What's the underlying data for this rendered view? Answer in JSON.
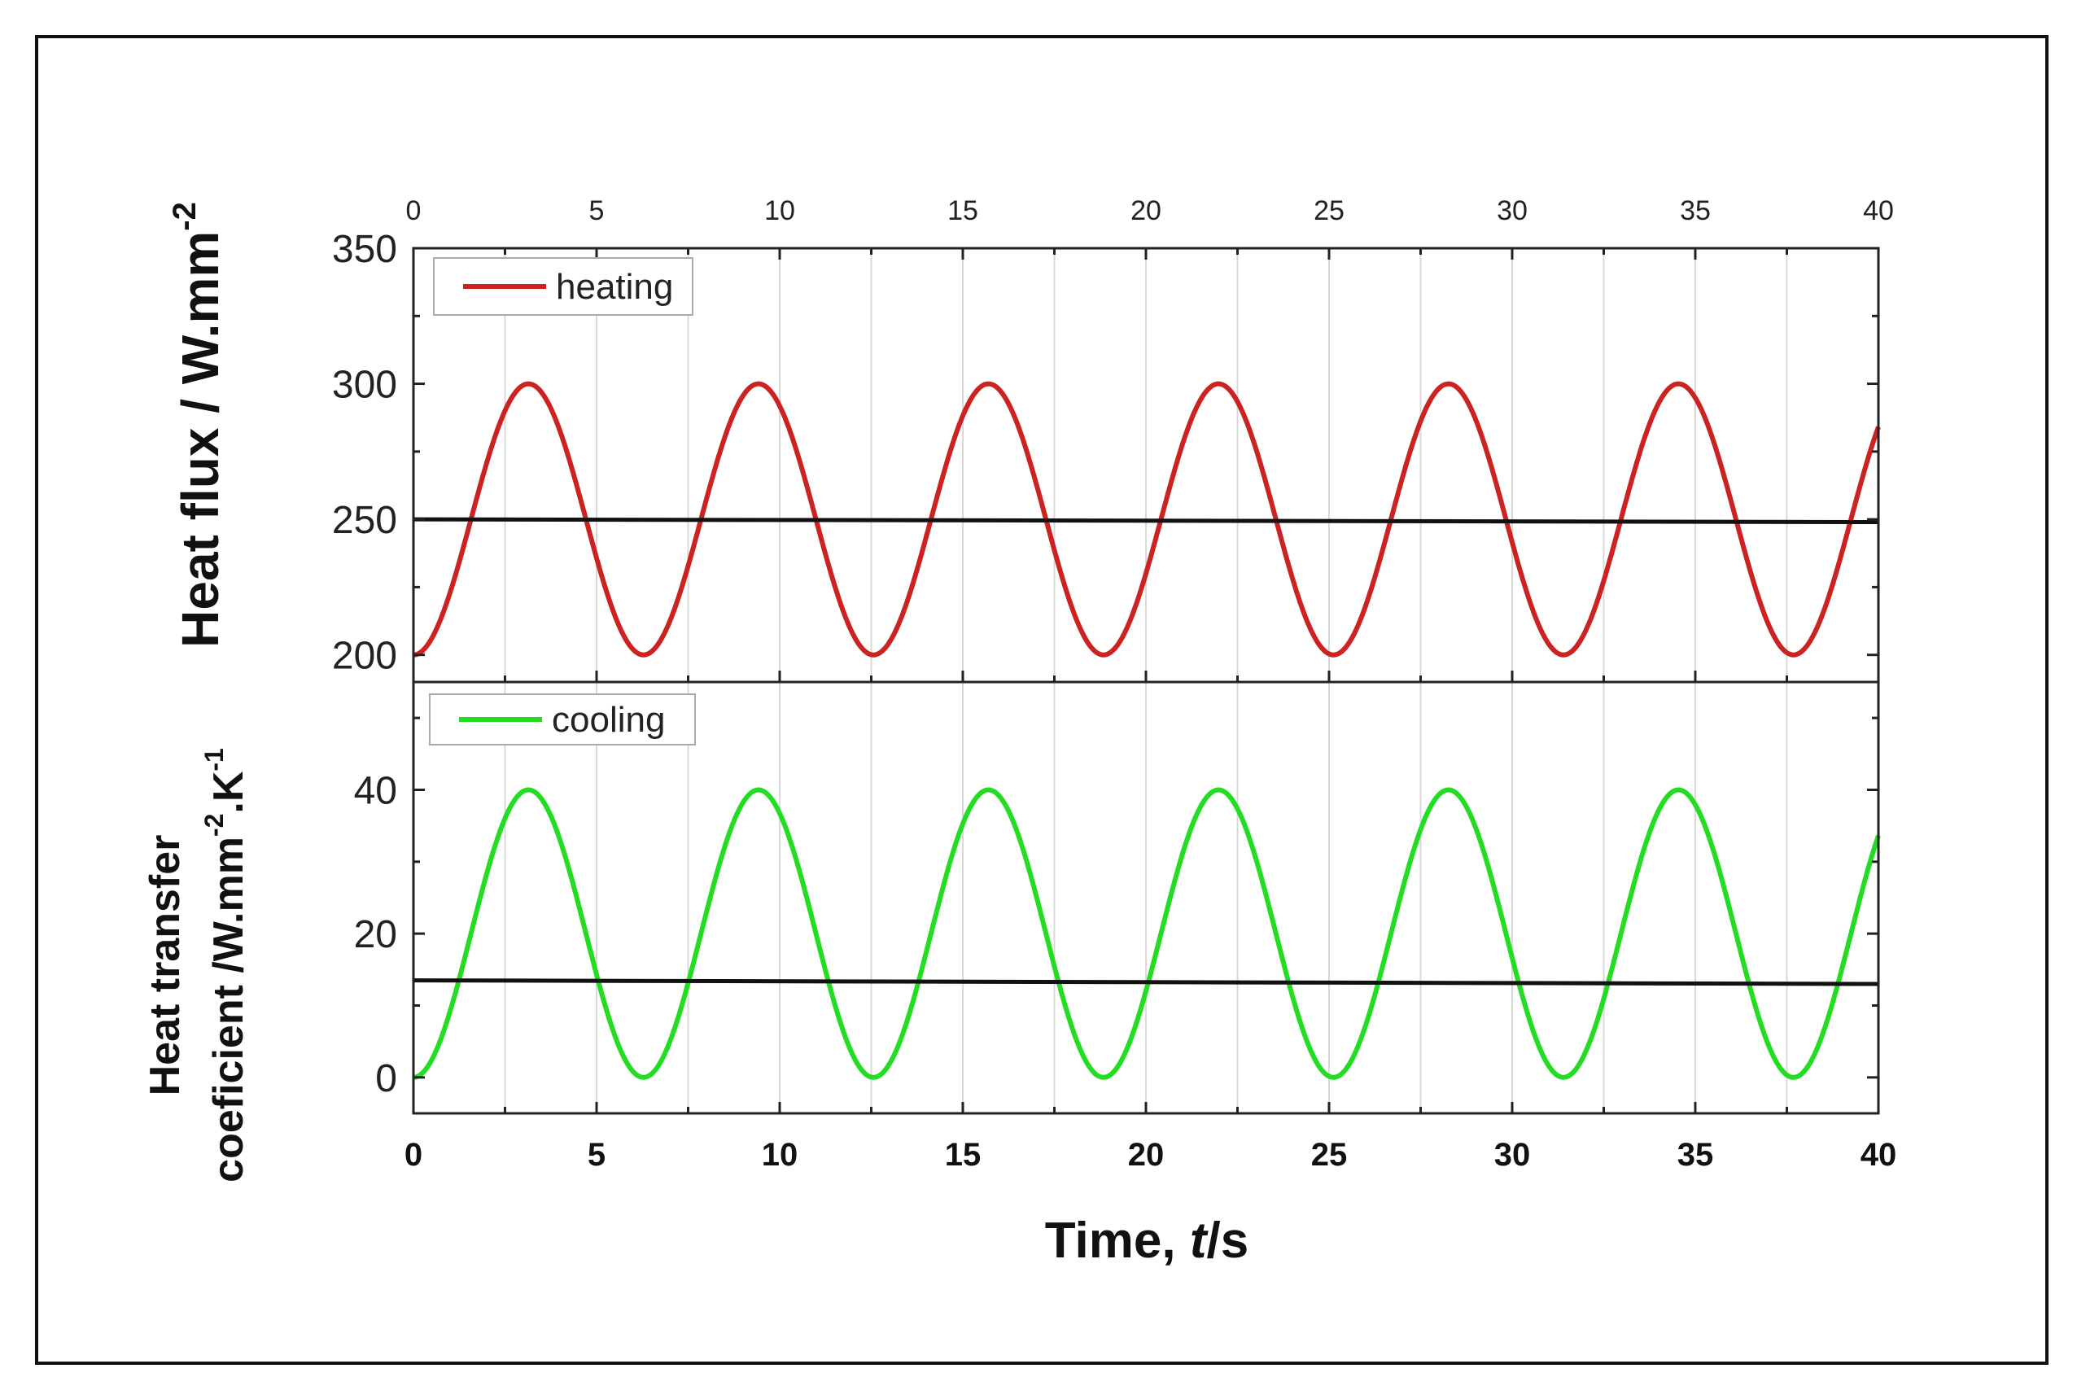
{
  "chart_data": [
    {
      "type": "line",
      "panel": "top",
      "ylabel": "Heat flux / W.mm",
      "ylabel_sup": "-2",
      "ylim": [
        190,
        350
      ],
      "yticks": [
        "200",
        "250",
        "300",
        "350"
      ],
      "xlim": [
        0,
        40
      ],
      "xticks_top": [
        "0",
        "5",
        "10",
        "15",
        "20",
        "25",
        "30",
        "35",
        "40"
      ],
      "grid": "vertical",
      "legend_position": "top-left",
      "series": [
        {
          "name": "heating",
          "color": "#cc2222",
          "kind": "sinusoid",
          "offset": 250,
          "amplitude": 50,
          "period": 6.28,
          "x_range": [
            0,
            40
          ],
          "points": [
            [
              0,
              200
            ],
            [
              3.14,
              300
            ],
            [
              6.28,
              200
            ],
            [
              9.42,
              300
            ],
            [
              12.57,
              200
            ],
            [
              15.71,
              300
            ],
            [
              18.85,
              200
            ],
            [
              21.99,
              300
            ],
            [
              25.13,
              200
            ],
            [
              28.27,
              300
            ],
            [
              31.42,
              200
            ],
            [
              34.56,
              300
            ],
            [
              37.7,
              200
            ],
            [
              40,
              283
            ]
          ]
        },
        {
          "name": "",
          "color": "#111111",
          "kind": "linear",
          "points": [
            [
              0,
              250
            ],
            [
              40,
              249
            ]
          ]
        }
      ]
    },
    {
      "type": "line",
      "panel": "bottom",
      "ylabel_line1": "Heat transfer",
      "ylabel_line2": "coeficient /W.mm",
      "ylabel_sup1": "-2",
      "ylabel_mid": ".K",
      "ylabel_sup2": "-1",
      "ylim": [
        -5,
        55
      ],
      "yticks": [
        "0",
        "20",
        "40"
      ],
      "xlim": [
        0,
        40
      ],
      "xticks": [
        "0",
        "5",
        "10",
        "15",
        "20",
        "25",
        "30",
        "35",
        "40"
      ],
      "xlabel_prefix": "Time, ",
      "xlabel_italic": "t",
      "xlabel_suffix": "/s",
      "grid": "vertical",
      "legend_position": "top-left",
      "series": [
        {
          "name": "cooling",
          "color": "#22dd22",
          "kind": "sinusoid",
          "offset": 20,
          "amplitude": 20,
          "period": 6.28,
          "x_range": [
            0,
            40
          ],
          "points": [
            [
              0,
              0
            ],
            [
              3.14,
              40
            ],
            [
              6.28,
              0
            ],
            [
              9.42,
              40
            ],
            [
              12.57,
              0
            ],
            [
              15.71,
              40
            ],
            [
              18.85,
              0
            ],
            [
              21.99,
              40
            ],
            [
              25.13,
              0
            ],
            [
              28.27,
              40
            ],
            [
              31.42,
              0
            ],
            [
              34.56,
              40
            ],
            [
              37.7,
              0
            ],
            [
              40,
              33
            ]
          ]
        },
        {
          "name": "",
          "color": "#111111",
          "kind": "linear",
          "points": [
            [
              0,
              13.5
            ],
            [
              40,
              13
            ]
          ]
        }
      ]
    }
  ]
}
